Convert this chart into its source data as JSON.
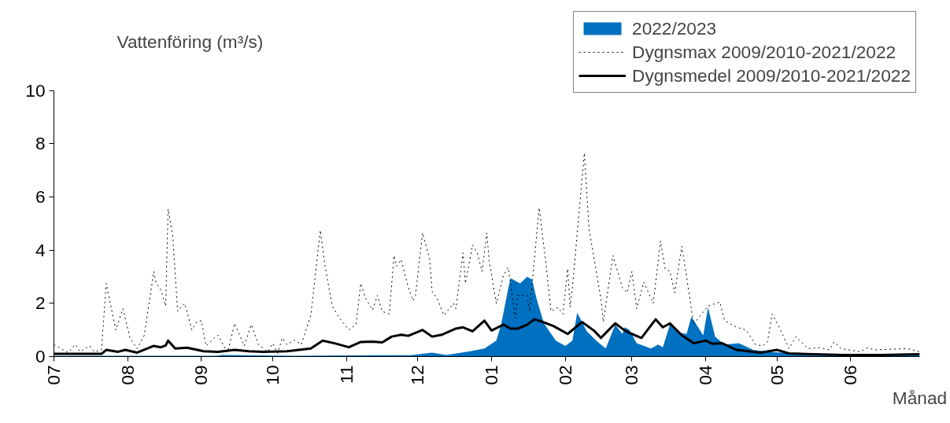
{
  "chart_data": {
    "type": "line",
    "ylabel": "Vattenföring (m³/s)",
    "xlabel": "Månad",
    "xlim": [
      "2022-07-01",
      "2023-06-30"
    ],
    "ylim": [
      0,
      10
    ],
    "xticks": [
      {
        "value": "2022-07-01",
        "label": "07"
      },
      {
        "value": "2022-08-01",
        "label": "08"
      },
      {
        "value": "2022-09-01",
        "label": "09"
      },
      {
        "value": "2022-10-01",
        "label": "10"
      },
      {
        "value": "2022-11-01",
        "label": "11"
      },
      {
        "value": "2022-12-01",
        "label": "12"
      },
      {
        "value": "2023-01-01",
        "label": "01"
      },
      {
        "value": "2023-02-01",
        "label": "02"
      },
      {
        "value": "2023-03-01",
        "label": "03"
      },
      {
        "value": "2023-04-01",
        "label": "04"
      },
      {
        "value": "2023-05-01",
        "label": "05"
      },
      {
        "value": "2023-06-01",
        "label": "06"
      }
    ],
    "yticks": [
      0,
      2,
      4,
      6,
      8,
      10
    ],
    "legend": "top right",
    "series": [
      {
        "name": "2022/2023",
        "type": "area",
        "color": "#0070c0",
        "x": [
          "2022-07-01",
          "2022-09-07",
          "2022-09-10",
          "2022-10-10",
          "2022-11-16",
          "2022-11-28",
          "2022-12-07",
          "2022-12-13",
          "2022-12-23",
          "2022-12-29",
          "2023-01-03",
          "2023-01-05",
          "2023-01-08",
          "2023-01-09",
          "2023-01-13",
          "2023-01-16",
          "2023-01-18",
          "2023-01-20",
          "2023-01-23",
          "2023-01-28",
          "2023-02-01",
          "2023-02-04",
          "2023-02-06",
          "2023-02-10",
          "2023-02-14",
          "2023-02-18",
          "2023-02-22",
          "2023-02-25",
          "2023-02-26",
          "2023-02-28",
          "2023-03-03",
          "2023-03-09",
          "2023-03-12",
          "2023-03-14",
          "2023-03-17",
          "2023-03-21",
          "2023-03-24",
          "2023-03-26",
          "2023-03-31",
          "2023-04-02",
          "2023-04-05",
          "2023-04-09",
          "2023-04-15",
          "2023-04-21",
          "2023-04-27",
          "2023-05-03",
          "2023-05-14",
          "2023-06-05",
          "2023-06-30"
        ],
        "values": [
          0.03,
          0.03,
          0.06,
          0.03,
          0.05,
          0.05,
          0.15,
          0.06,
          0.2,
          0.3,
          0.6,
          1.2,
          2.55,
          2.95,
          2.75,
          3.0,
          2.9,
          2.15,
          1.25,
          0.6,
          0.4,
          0.6,
          1.65,
          0.95,
          0.6,
          0.3,
          1.2,
          0.85,
          1.1,
          1.0,
          0.5,
          0.3,
          0.45,
          0.35,
          1.2,
          0.9,
          0.85,
          1.5,
          0.8,
          1.85,
          0.75,
          0.45,
          0.5,
          0.25,
          0.18,
          0.15,
          0.1,
          0.08,
          0.08
        ]
      },
      {
        "name": "Dygnsmax 2009/2010-2021/2022",
        "line_style": "dotted",
        "color": "#000000",
        "x": [
          "2022-07-01",
          "2022-07-07",
          "2022-07-10",
          "2022-07-12",
          "2022-07-16",
          "2022-07-18",
          "2022-07-21",
          "2022-07-23",
          "2022-07-27",
          "2022-07-30",
          "2022-08-02",
          "2022-08-05",
          "2022-08-08",
          "2022-08-12",
          "2022-08-13",
          "2022-08-15",
          "2022-08-17",
          "2022-08-18",
          "2022-08-20",
          "2022-08-22",
          "2022-08-25",
          "2022-08-28",
          "2022-08-30",
          "2022-09-01",
          "2022-09-03",
          "2022-09-07",
          "2022-09-08",
          "2022-09-12",
          "2022-09-15",
          "2022-09-19",
          "2022-09-22",
          "2022-09-25",
          "2022-09-29",
          "2022-10-01",
          "2022-10-03",
          "2022-10-05",
          "2022-10-07",
          "2022-10-10",
          "2022-10-13",
          "2022-10-17",
          "2022-10-21",
          "2022-10-23",
          "2022-10-26",
          "2022-10-29",
          "2022-11-02",
          "2022-11-05",
          "2022-11-07",
          "2022-11-09",
          "2022-11-12",
          "2022-11-14",
          "2022-11-16",
          "2022-11-19",
          "2022-11-21",
          "2022-11-22",
          "2022-11-24",
          "2022-11-27",
          "2022-11-29",
          "2022-11-30",
          "2022-12-03",
          "2022-12-06",
          "2022-12-07",
          "2022-12-09",
          "2022-12-12",
          "2022-12-16",
          "2022-12-17",
          "2022-12-20",
          "2022-12-21",
          "2022-12-24",
          "2022-12-26",
          "2022-12-28",
          "2022-12-30",
          "2022-12-31",
          "2023-01-03",
          "2023-01-06",
          "2023-01-08",
          "2023-01-11",
          "2023-01-12",
          "2023-01-16",
          "2023-01-17",
          "2023-01-21",
          "2023-01-24",
          "2023-01-26",
          "2023-01-29",
          "2023-01-31",
          "2023-02-02",
          "2023-02-03",
          "2023-02-04",
          "2023-02-09",
          "2023-02-11",
          "2023-02-16",
          "2023-02-17",
          "2023-02-21",
          "2023-02-23",
          "2023-02-25",
          "2023-02-27",
          "2023-03-01",
          "2023-03-03",
          "2023-03-06",
          "2023-03-08",
          "2023-03-10",
          "2023-03-13",
          "2023-03-15",
          "2023-03-17",
          "2023-03-19",
          "2023-03-22",
          "2023-03-24",
          "2023-03-27",
          "2023-03-29",
          "2023-04-02",
          "2023-04-07",
          "2023-04-09",
          "2023-04-14",
          "2023-04-18",
          "2023-04-22",
          "2023-04-25",
          "2023-04-27",
          "2023-04-29",
          "2023-05-02",
          "2023-05-06",
          "2023-05-09",
          "2023-05-14",
          "2023-05-19",
          "2023-05-23",
          "2023-05-25",
          "2023-05-28",
          "2023-06-05",
          "2023-06-08",
          "2023-06-11",
          "2023-06-24",
          "2023-06-26",
          "2023-06-30"
        ],
        "values": [
          0.45,
          0.15,
          0.45,
          0.18,
          0.4,
          0.18,
          0.25,
          2.75,
          1.0,
          1.8,
          0.7,
          0.3,
          0.8,
          3.2,
          2.75,
          2.5,
          1.9,
          5.55,
          4.5,
          1.7,
          2.0,
          1.0,
          1.3,
          1.35,
          0.4,
          0.75,
          0.8,
          0.15,
          1.25,
          0.4,
          1.2,
          0.45,
          0.18,
          0.5,
          0.12,
          0.7,
          0.45,
          0.62,
          0.45,
          1.55,
          4.75,
          3.4,
          1.9,
          1.45,
          1.0,
          1.2,
          2.75,
          2.2,
          1.75,
          2.3,
          1.7,
          1.6,
          3.8,
          3.4,
          3.65,
          2.6,
          2.1,
          2.3,
          4.65,
          3.65,
          2.45,
          2.2,
          1.55,
          2.0,
          1.8,
          3.9,
          2.75,
          4.2,
          3.9,
          3.2,
          4.65,
          3.6,
          2.0,
          3.05,
          3.35,
          1.45,
          2.3,
          2.3,
          1.7,
          5.6,
          3.4,
          1.7,
          1.85,
          1.6,
          3.3,
          1.85,
          2.6,
          7.65,
          4.8,
          2.15,
          1.3,
          3.8,
          3.2,
          2.6,
          2.4,
          3.2,
          1.8,
          2.8,
          2.4,
          2.0,
          4.35,
          3.3,
          3.2,
          2.4,
          4.15,
          3.0,
          1.2,
          1.45,
          1.9,
          2.05,
          1.35,
          1.1,
          1.0,
          0.45,
          0.4,
          0.55,
          1.6,
          1.1,
          0.3,
          0.75,
          0.3,
          0.33,
          0.25,
          0.55,
          0.3,
          0.18,
          0.33,
          0.25,
          0.3,
          0.28,
          0.18
        ]
      },
      {
        "name": "Dygnsmedel 2009/2010-2021/2022",
        "line_style": "solid",
        "color": "#000000",
        "x": [
          "2022-07-01",
          "2022-07-21",
          "2022-07-23",
          "2022-07-28",
          "2022-07-31",
          "2022-08-05",
          "2022-08-12",
          "2022-08-15",
          "2022-08-17",
          "2022-08-18",
          "2022-08-21",
          "2022-08-26",
          "2022-09-02",
          "2022-09-08",
          "2022-09-15",
          "2022-09-21",
          "2022-09-27",
          "2022-10-07",
          "2022-10-17",
          "2022-10-22",
          "2022-10-27",
          "2022-11-02",
          "2022-11-07",
          "2022-11-12",
          "2022-11-16",
          "2022-11-20",
          "2022-11-24",
          "2022-11-27",
          "2022-12-03",
          "2022-12-07",
          "2022-12-11",
          "2022-12-17",
          "2022-12-20",
          "2022-12-24",
          "2022-12-29",
          "2023-01-01",
          "2023-01-06",
          "2023-01-09",
          "2023-01-12",
          "2023-01-16",
          "2023-01-19",
          "2023-01-22",
          "2023-01-27",
          "2023-02-02",
          "2023-02-08",
          "2023-02-13",
          "2023-02-16",
          "2023-02-19",
          "2023-02-22",
          "2023-02-26",
          "2023-03-01",
          "2023-03-05",
          "2023-03-11",
          "2023-03-14",
          "2023-03-17",
          "2023-03-22",
          "2023-03-27",
          "2023-04-01",
          "2023-04-04",
          "2023-04-08",
          "2023-04-14",
          "2023-04-24",
          "2023-05-01",
          "2023-05-06",
          "2023-05-16",
          "2023-05-29",
          "2023-06-14",
          "2023-06-30"
        ],
        "values": [
          0.1,
          0.1,
          0.25,
          0.18,
          0.25,
          0.15,
          0.4,
          0.35,
          0.42,
          0.6,
          0.3,
          0.33,
          0.2,
          0.18,
          0.25,
          0.2,
          0.18,
          0.2,
          0.3,
          0.6,
          0.5,
          0.35,
          0.55,
          0.56,
          0.53,
          0.75,
          0.82,
          0.78,
          1.0,
          0.75,
          0.82,
          1.05,
          1.1,
          0.95,
          1.35,
          0.98,
          1.2,
          1.05,
          1.05,
          1.2,
          1.4,
          1.32,
          1.15,
          0.85,
          1.3,
          0.98,
          0.7,
          0.98,
          1.25,
          0.98,
          0.85,
          0.7,
          1.4,
          1.1,
          1.25,
          0.8,
          0.5,
          0.6,
          0.48,
          0.5,
          0.25,
          0.15,
          0.25,
          0.12,
          0.09,
          0.06,
          0.06,
          0.09
        ]
      }
    ]
  }
}
